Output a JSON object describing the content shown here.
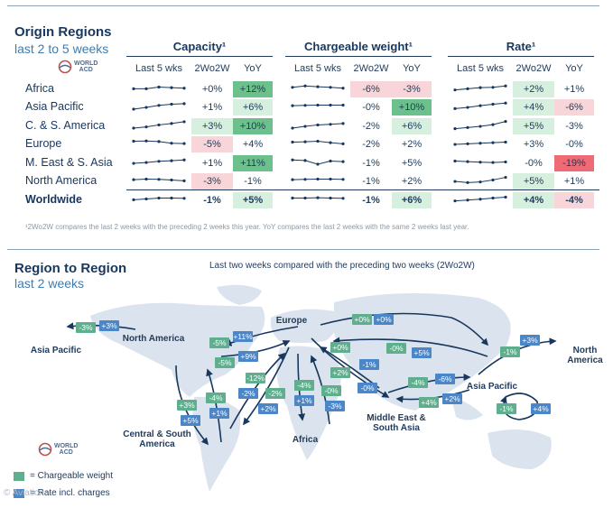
{
  "colors": {
    "dark_green": "#6cc08b",
    "light_green": "#d6efde",
    "light_red": "#f8d5d8",
    "red": "#ee6a74",
    "map_green": "#5fae8e",
    "map_blue": "#4a86c8",
    "map_land": "#dbe4ee"
  },
  "origin": {
    "title": "Origin Regions",
    "subtitle": "last 2 to 5 weeks",
    "logo_text": [
      "WORLD",
      "ACD"
    ],
    "footnote": "¹2Wo2W compares the last 2 weeks with the preceding 2 weeks this year. YoY compares the last 2 weeks with the same 2 weeks last year."
  },
  "chart_data": [
    {
      "type": "table",
      "title": "Origin Regions",
      "groups": [
        "Capacity¹",
        "Chargeable weight¹",
        "Rate¹"
      ],
      "columns": [
        "Last 5 wks",
        "2Wo2W",
        "YoY"
      ],
      "rows": [
        {
          "label": "Africa",
          "bold": false,
          "capacity": {
            "spark": [
              3,
              3,
              3.6,
              3.4,
              3.2
            ],
            "w2": "+0%",
            "yoy": "+12%",
            "w2_tone": "neutral",
            "yoy_tone": "dgreen"
          },
          "weight": {
            "spark": [
              3.5,
              4,
              3.7,
              3.5,
              3.2
            ],
            "w2": "-6%",
            "yoy": "-3%",
            "w2_tone": "lred",
            "yoy_tone": "lred"
          },
          "rate": {
            "spark": [
              2.6,
              3,
              3.4,
              3.5,
              4
            ],
            "w2": "+2%",
            "yoy": "+1%",
            "w2_tone": "lgreen",
            "yoy_tone": "neutral"
          }
        },
        {
          "label": "Asia Pacific",
          "bold": false,
          "capacity": {
            "spark": [
              2.2,
              2.8,
              3.5,
              3.9,
              4.1
            ],
            "w2": "+1%",
            "yoy": "+6%",
            "w2_tone": "neutral",
            "yoy_tone": "lgreen"
          },
          "weight": {
            "spark": [
              3.4,
              3.5,
              3.6,
              3.6,
              3.6
            ],
            "w2": "-0%",
            "yoy": "+10%",
            "w2_tone": "neutral",
            "yoy_tone": "dgreen"
          },
          "rate": {
            "spark": [
              2.4,
              2.8,
              3.4,
              3.9,
              4.3
            ],
            "w2": "+4%",
            "yoy": "-6%",
            "w2_tone": "lgreen",
            "yoy_tone": "lred"
          }
        },
        {
          "label": "C. & S. America",
          "bold": false,
          "capacity": {
            "spark": [
              2.2,
              2.6,
              3.3,
              3.8,
              4.4
            ],
            "w2": "+3%",
            "yoy": "+10%",
            "w2_tone": "lgreen",
            "yoy_tone": "dgreen"
          },
          "weight": {
            "spark": [
              2.2,
              2.8,
              3.3,
              3.5,
              3.8
            ],
            "w2": "-2%",
            "yoy": "+6%",
            "w2_tone": "neutral",
            "yoy_tone": "lgreen"
          },
          "rate": {
            "spark": [
              2,
              2.4,
              2.8,
              3.4,
              4.5
            ],
            "w2": "+5%",
            "yoy": "-3%",
            "w2_tone": "lgreen",
            "yoy_tone": "neutral"
          }
        },
        {
          "label": "Europe",
          "bold": false,
          "capacity": {
            "spark": [
              3.9,
              4,
              3.8,
              3.2,
              3.1
            ],
            "w2": "-5%",
            "yoy": "+4%",
            "w2_tone": "lred",
            "yoy_tone": "neutral"
          },
          "weight": {
            "spark": [
              3.6,
              3.7,
              3.9,
              3.4,
              3
            ],
            "w2": "-2%",
            "yoy": "+2%",
            "w2_tone": "neutral",
            "yoy_tone": "neutral"
          },
          "rate": {
            "spark": [
              2.8,
              3,
              3.2,
              3.4,
              3.6
            ],
            "w2": "+3%",
            "yoy": "-0%",
            "w2_tone": "neutral",
            "yoy_tone": "neutral"
          }
        },
        {
          "label": "M. East & S. Asia",
          "bold": false,
          "capacity": {
            "spark": [
              2.8,
              3.1,
              3.5,
              3.7,
              4
            ],
            "w2": "+1%",
            "yoy": "+11%",
            "w2_tone": "neutral",
            "yoy_tone": "dgreen"
          },
          "weight": {
            "spark": [
              4,
              3.8,
              2.5,
              3.6,
              3.4
            ],
            "w2": "-1%",
            "yoy": "+5%",
            "w2_tone": "neutral",
            "yoy_tone": "neutral"
          },
          "rate": {
            "spark": [
              3.6,
              3.4,
              3.2,
              3.1,
              3.3
            ],
            "w2": "-0%",
            "yoy": "-19%",
            "w2_tone": "neutral",
            "yoy_tone": "dred"
          }
        },
        {
          "label": "North America",
          "bold": false,
          "capacity": {
            "spark": [
              3.4,
              3.6,
              3.5,
              3.3,
              3
            ],
            "w2": "-3%",
            "yoy": "-1%",
            "w2_tone": "lred",
            "yoy_tone": "neutral"
          },
          "weight": {
            "spark": [
              3.4,
              3.5,
              3.6,
              3.6,
              3.5
            ],
            "w2": "-1%",
            "yoy": "+2%",
            "w2_tone": "neutral",
            "yoy_tone": "neutral"
          },
          "rate": {
            "spark": [
              2.8,
              2.4,
              2.6,
              3.3,
              4.2
            ],
            "w2": "+5%",
            "yoy": "+1%",
            "w2_tone": "lgreen",
            "yoy_tone": "neutral"
          }
        },
        {
          "label": "Worldwide",
          "bold": true,
          "capacity": {
            "spark": [
              3,
              3.3,
              3.6,
              3.6,
              3.5
            ],
            "w2": "-1%",
            "yoy": "+5%",
            "w2_tone": "neutral",
            "yoy_tone": "lgreen"
          },
          "weight": {
            "spark": [
              3.6,
              3.6,
              3.7,
              3.6,
              3.5
            ],
            "w2": "-1%",
            "yoy": "+6%",
            "w2_tone": "neutral",
            "yoy_tone": "lgreen"
          },
          "rate": {
            "spark": [
              2.6,
              2.9,
              3.2,
              3.6,
              3.9
            ],
            "w2": "+4%",
            "yoy": "-4%",
            "w2_tone": "lgreen",
            "yoy_tone": "lred"
          }
        }
      ]
    },
    {
      "type": "flow-map",
      "title": "Region to Region",
      "subtitle": "last 2 weeks",
      "note": "Last two weeks compared with the preceding two weeks (2Wo2W)",
      "regions": [
        "Asia Pacific",
        "North America",
        "Europe",
        "Central & South America",
        "Africa",
        "Middle East & South Asia",
        "Asia Pacific",
        "North America"
      ],
      "badges": [
        {
          "id": "napac_g",
          "value": "-3%",
          "kind": "chargeable"
        },
        {
          "id": "napac_b",
          "value": "+3%",
          "kind": "rate"
        },
        {
          "id": "eu_top_g",
          "value": "+0%",
          "kind": "chargeable"
        },
        {
          "id": "eu_top_b",
          "value": "+0%",
          "kind": "rate"
        },
        {
          "id": "eu_na1_g",
          "value": "-5%",
          "kind": "chargeable"
        },
        {
          "id": "eu_na1_b",
          "value": "+11%",
          "kind": "rate"
        },
        {
          "id": "eu_na2_g",
          "value": "-5%",
          "kind": "chargeable"
        },
        {
          "id": "eu_na2_b",
          "value": "+9%",
          "kind": "rate"
        },
        {
          "id": "eu_me_g",
          "value": "+0%",
          "kind": "chargeable"
        },
        {
          "id": "eu_me_b",
          "value": "+5%",
          "kind": "rate"
        },
        {
          "id": "me_eu_g",
          "value": "-0%",
          "kind": "chargeable"
        },
        {
          "id": "eu_ap_b",
          "value": "-1%",
          "kind": "rate"
        },
        {
          "id": "eu_af1_g",
          "value": "+2%",
          "kind": "chargeable"
        },
        {
          "id": "eu_cs_g",
          "value": "-12%",
          "kind": "chargeable"
        },
        {
          "id": "eu_cs_g2",
          "value": "-2%",
          "kind": "chargeable"
        },
        {
          "id": "eu_cs_b",
          "value": "-2%",
          "kind": "rate"
        },
        {
          "id": "cs_eu_b",
          "value": "+2%",
          "kind": "rate"
        },
        {
          "id": "af_g1",
          "value": "-4%",
          "kind": "chargeable"
        },
        {
          "id": "af_b1",
          "value": "+1%",
          "kind": "rate"
        },
        {
          "id": "af_g2",
          "value": "-0%",
          "kind": "chargeable"
        },
        {
          "id": "af_b2",
          "value": "-3%",
          "kind": "rate"
        },
        {
          "id": "na_cs_g",
          "value": "+3%",
          "kind": "chargeable"
        },
        {
          "id": "na_cs_b",
          "value": "+5%",
          "kind": "rate"
        },
        {
          "id": "cs_na_g",
          "value": "-4%",
          "kind": "chargeable"
        },
        {
          "id": "cs_na_b",
          "value": "+1%",
          "kind": "rate"
        },
        {
          "id": "me_ap_g",
          "value": "-4%",
          "kind": "chargeable"
        },
        {
          "id": "me_ap_b",
          "value": "-6%",
          "kind": "rate"
        },
        {
          "id": "ap_me_g",
          "value": "+4%",
          "kind": "chargeable"
        },
        {
          "id": "ap_me_b",
          "value": "+2%",
          "kind": "rate"
        },
        {
          "id": "me_b",
          "value": "-0%",
          "kind": "rate"
        },
        {
          "id": "ap_na_g",
          "value": "-1%",
          "kind": "chargeable"
        },
        {
          "id": "ap_na_b",
          "value": "+3%",
          "kind": "rate"
        },
        {
          "id": "intra_ap_g",
          "value": "-1%",
          "kind": "chargeable"
        },
        {
          "id": "intra_ap_b",
          "value": "+4%",
          "kind": "rate"
        }
      ],
      "legend": [
        "= Chargeable weight",
        "= Rate incl. charges"
      ]
    }
  ],
  "region_map": {
    "title": "Region to Region",
    "subtitle": "last 2 weeks",
    "note": "Last two weeks compared with the preceding two weeks (2Wo2W)"
  },
  "watermark": "© Aviation"
}
